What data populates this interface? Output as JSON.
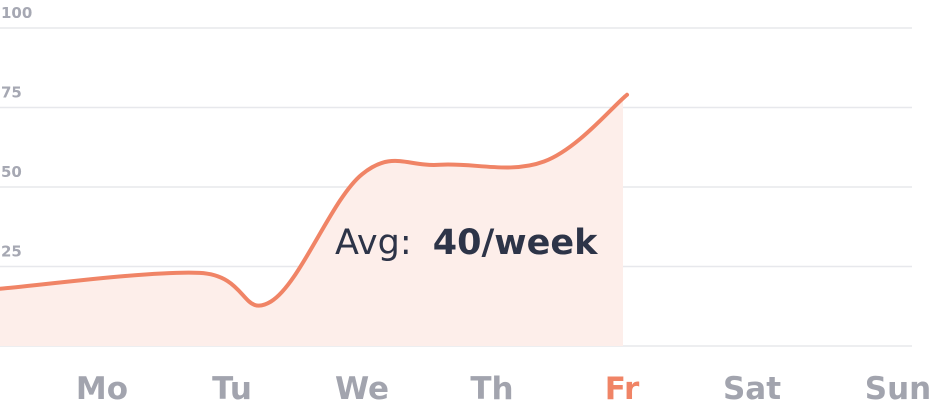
{
  "chart_data": {
    "type": "area",
    "categories": [
      "Mo",
      "Tu",
      "We",
      "Th",
      "Fr",
      "Sat",
      "Sun"
    ],
    "highlighted_category": "Fr",
    "x": [
      0,
      0.75,
      1.3,
      2.0,
      2.6,
      3.4,
      4.0
    ],
    "values": [
      18,
      23,
      14,
      54,
      57,
      58,
      79
    ],
    "ylim": [
      0,
      100
    ],
    "yticks": [
      0,
      25,
      50,
      75,
      100
    ],
    "grid": true,
    "annotation": {
      "prefix": "Avg:",
      "value": "40/week"
    },
    "colors": {
      "line": "#f08466",
      "fill": "#fdeeea",
      "grid": "#e7e8ec",
      "tick": "#a6a8b3",
      "highlight": "#f08466",
      "annotation": "#2d3448"
    }
  }
}
